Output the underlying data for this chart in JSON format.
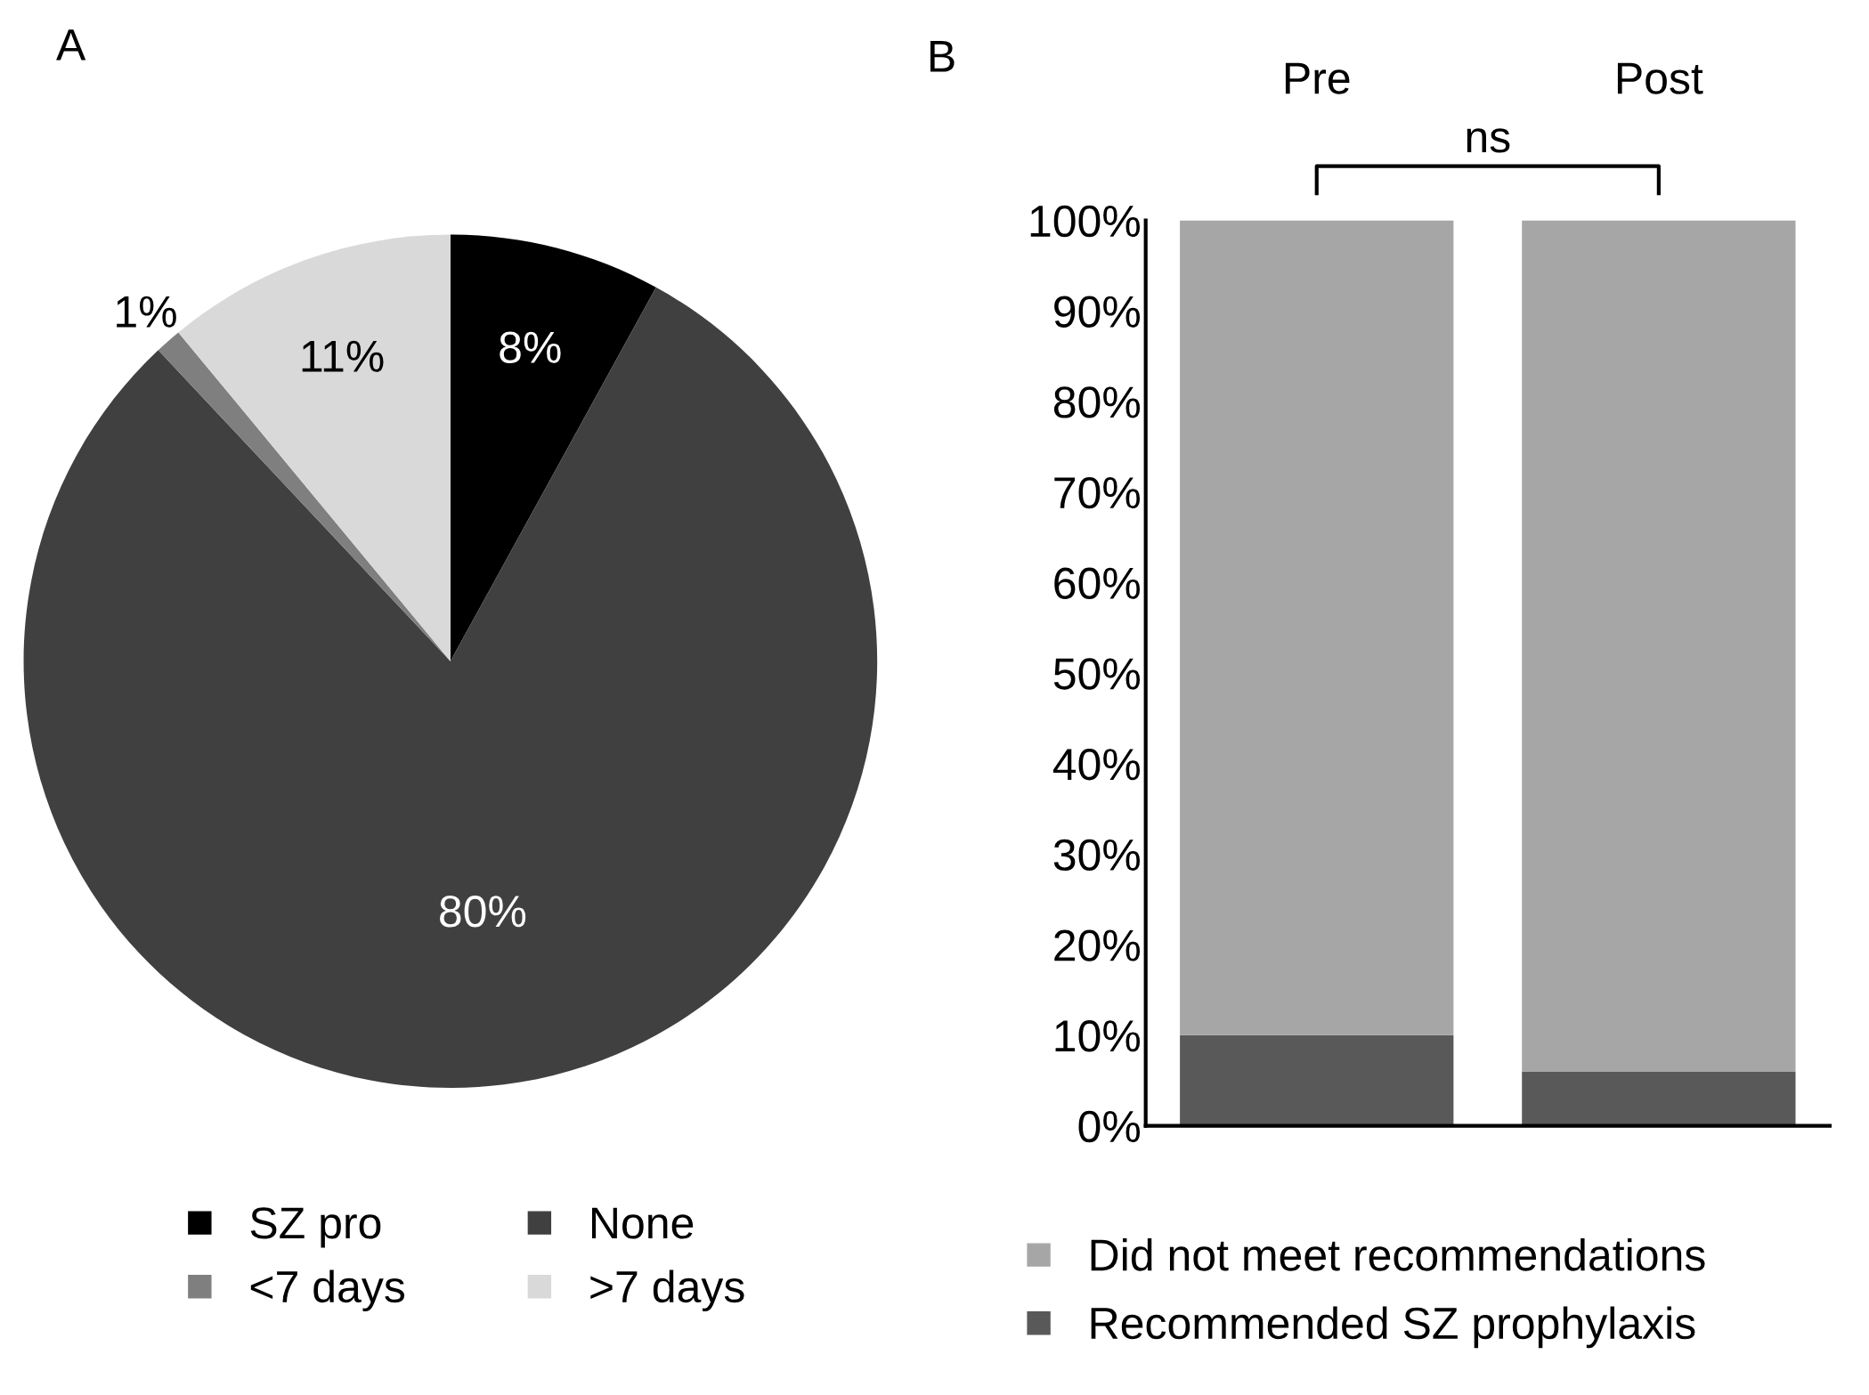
{
  "chart_data": [
    {
      "type": "pie",
      "annotations": [
        "A"
      ],
      "categories": [
        "SZ pro",
        "None",
        "<7 days",
        ">7 days"
      ],
      "values": [
        8,
        80,
        1,
        11
      ],
      "colors": [
        "#000000",
        "#404040",
        "#7f7f7f",
        "#d9d9d9"
      ],
      "value_labels": [
        "8%",
        "80%",
        "1%",
        "11%"
      ],
      "legend": "bottom"
    },
    {
      "type": "bar",
      "stacked": true,
      "annotations": [
        "B",
        "ns"
      ],
      "categories": [
        "Pre",
        "Post"
      ],
      "series": [
        {
          "name": "Recommended SZ prophylaxis",
          "color": "#595959",
          "values": [
            10,
            6
          ]
        },
        {
          "name": "Did not meet recommendations",
          "color": "#a6a6a6",
          "values": [
            90,
            94
          ]
        }
      ],
      "ylim": [
        0,
        100
      ],
      "yticks": [
        {
          "value": 0,
          "label": "0%"
        },
        {
          "value": 10,
          "label": "10%"
        },
        {
          "value": 20,
          "label": "20%"
        },
        {
          "value": 30,
          "label": "30%"
        },
        {
          "value": 40,
          "label": "40%"
        },
        {
          "value": 50,
          "label": "50%"
        },
        {
          "value": 60,
          "label": "60%"
        },
        {
          "value": 70,
          "label": "70%"
        },
        {
          "value": 80,
          "label": "80%"
        },
        {
          "value": 90,
          "label": "90%"
        },
        {
          "value": 100,
          "label": "100%"
        }
      ],
      "grid": false,
      "legend": "bottom"
    }
  ]
}
